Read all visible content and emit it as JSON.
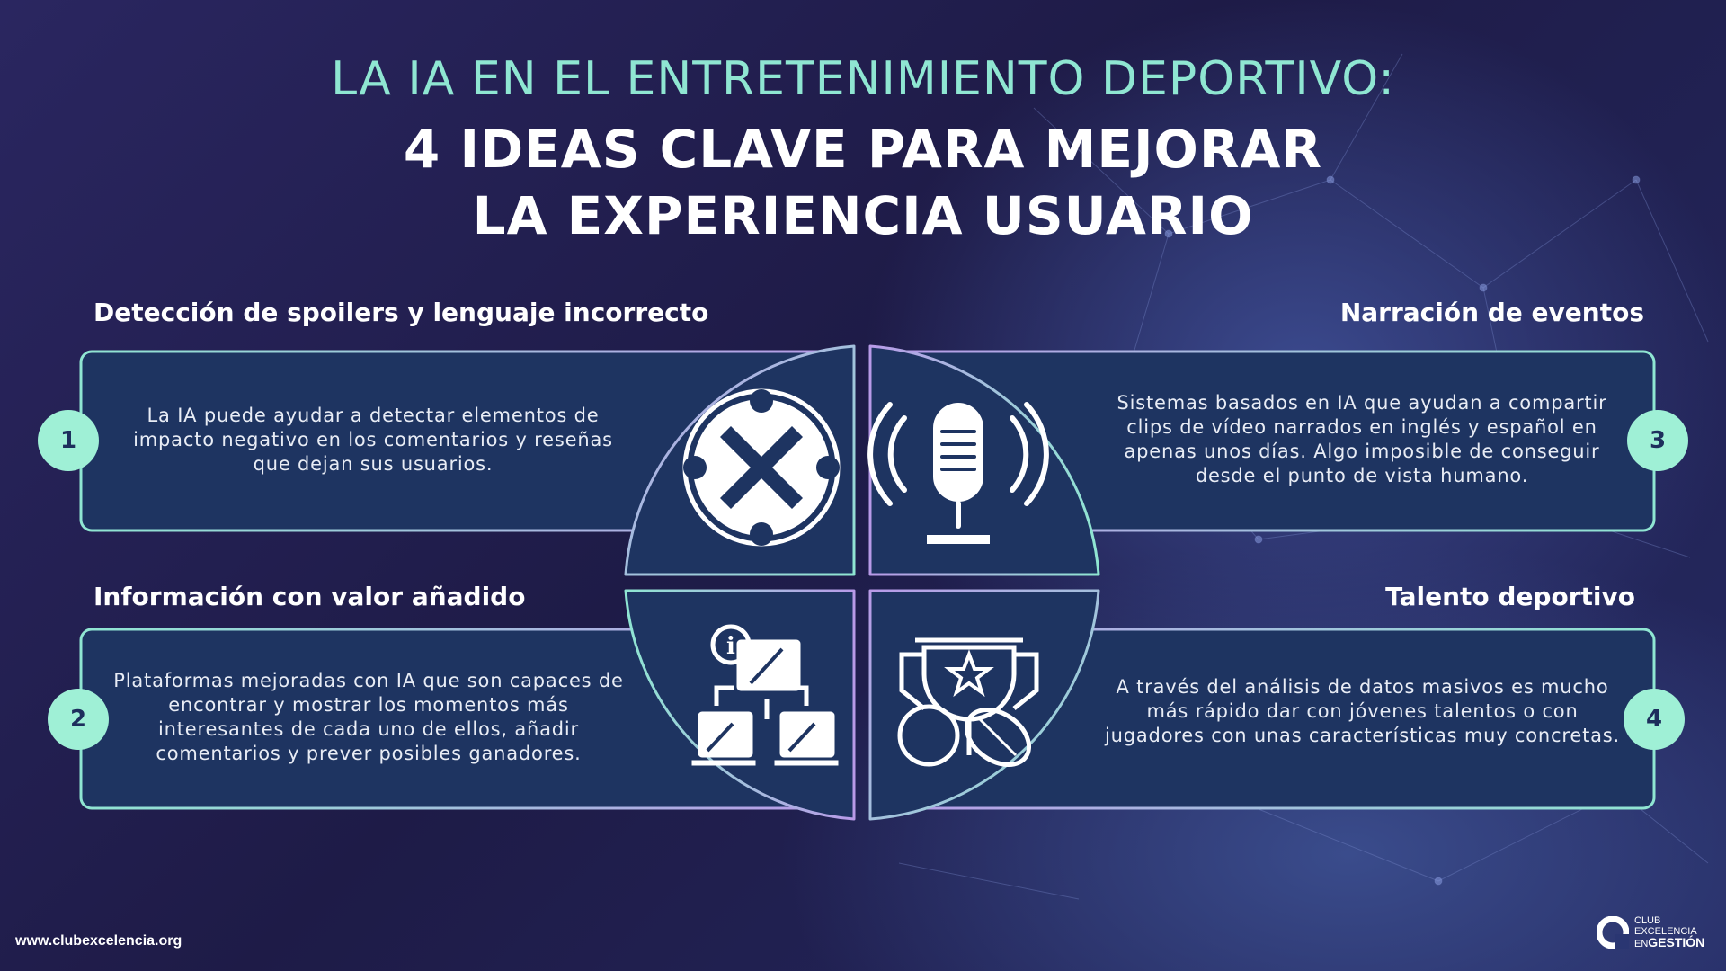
{
  "title": {
    "line1": "LA IA EN EL ENTRETENIMIENTO DEPORTIVO:",
    "line2": "4 IDEAS CLAVE PARA MEJORAR",
    "line3": "LA EXPERIENCIA USUARIO"
  },
  "colors": {
    "accent_cyan": "#8fe6d2",
    "accent_purple": "#b89ae8",
    "card_fill": "#1e3461",
    "badge_fill": "#9ff0d6"
  },
  "ideas": [
    {
      "number": "1",
      "heading": "Detección de spoilers y lenguaje incorrecto",
      "text": "La IA puede ayudar a detectar elementos de impacto negativo en los comentarios y reseñas que dejan sus usuarios.",
      "icon": "cancel-x-circle-icon"
    },
    {
      "number": "2",
      "heading": "Información con valor añadido",
      "text": "Plataformas mejoradas con IA que son capaces de encontrar y mostrar los momentos más interesantes de cada uno de ellos, añadir comentarios y prever posibles ganadores.",
      "icon": "network-monitors-info-icon"
    },
    {
      "number": "3",
      "heading": "Narración de eventos",
      "text": "Sistemas basados en IA que ayudan a compartir clips de vídeo narrados en inglés y español en apenas unos días. Algo imposible de conseguir desde el punto de vista humano.",
      "icon": "podcast-microphone-icon"
    },
    {
      "number": "4",
      "heading": "Talento deportivo",
      "text": "A través del análisis de datos masivos es mucho más rápido dar con jóvenes talentos o con jugadores con unas características muy concretas.",
      "icon": "trophy-balls-icon"
    }
  ],
  "footer": {
    "url": "www.clubexcelencia.org",
    "logo": {
      "line1": "CLUB",
      "line2": "EXCELENCIA",
      "line3_a": "EN",
      "line3_b": "GESTIÓN"
    }
  }
}
